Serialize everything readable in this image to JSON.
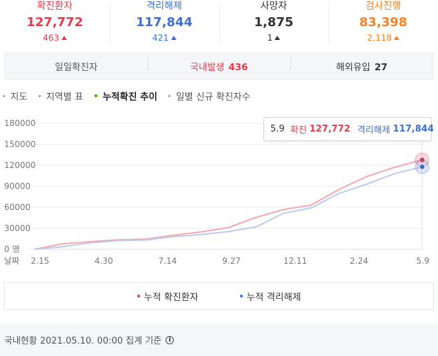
{
  "stats": [
    {
      "label": "확진환자",
      "value": "127,772",
      "delta": "463",
      "color": "#e8394b",
      "delta_color": "#e8394b"
    },
    {
      "label": "격리해제",
      "value": "117,844",
      "delta": "421",
      "color": "#3c6fd3",
      "delta_color": "#3c6fd3"
    },
    {
      "label": "사망자",
      "value": "1,875",
      "delta": "1",
      "color": "#333333",
      "delta_color": "#333333"
    },
    {
      "label": "검사진행",
      "value": "83,398",
      "delta": "2,118",
      "color": "#f5832a",
      "delta_color": "#f5832a"
    }
  ],
  "daily": {
    "label": "일일확진자",
    "domestic_label": "국내발생",
    "domestic_value": "436",
    "overseas_label": "해외유입",
    "overseas_value": "27"
  },
  "tabs": [
    {
      "label": "지도",
      "active": false
    },
    {
      "label": "지역별 표",
      "active": false
    },
    {
      "label": "누적확진 추이",
      "active": true
    },
    {
      "label": "일별 신규 확진자수",
      "active": false
    }
  ],
  "tooltip": {
    "date": "5.9",
    "confirmed_label": "확진",
    "confirmed_value": "127,772",
    "released_label": "격리해제",
    "released_value": "117,844"
  },
  "chart_data": {
    "type": "line",
    "x_axis_label": "날짜",
    "x_ticks": [
      "2.15",
      "4.30",
      "7.14",
      "9.27",
      "12.11",
      "2.24",
      "5.9"
    ],
    "y_ticks": [
      "180000",
      "150000",
      "120000",
      "90000",
      "60000",
      "30000",
      "0 명"
    ],
    "ylim": [
      0,
      180000
    ],
    "grid": true,
    "series": [
      {
        "name": "누적 확진환자",
        "color": "#f4a7ae",
        "values": [
          30,
          7800,
          10800,
          13500,
          14500,
          19900,
          24700,
          31000,
          45400,
          56900,
          63100,
          85500,
          104000,
          117000,
          127772
        ]
      },
      {
        "name": "누적 격리해제",
        "color": "#bccaf0",
        "values": [
          16,
          3500,
          9100,
          12300,
          13300,
          18000,
          21000,
          25200,
          32000,
          51500,
          59100,
          79800,
          93000,
          108000,
          117844
        ]
      }
    ]
  },
  "legend": [
    {
      "label": "누적 확진환자",
      "color": "#e8394b"
    },
    {
      "label": "누적 격리해제",
      "color": "#3c6fd3"
    }
  ],
  "footer": {
    "text": "국내현황 2021.05.10. 00:00 집계 기준",
    "icon": "info-icon"
  }
}
